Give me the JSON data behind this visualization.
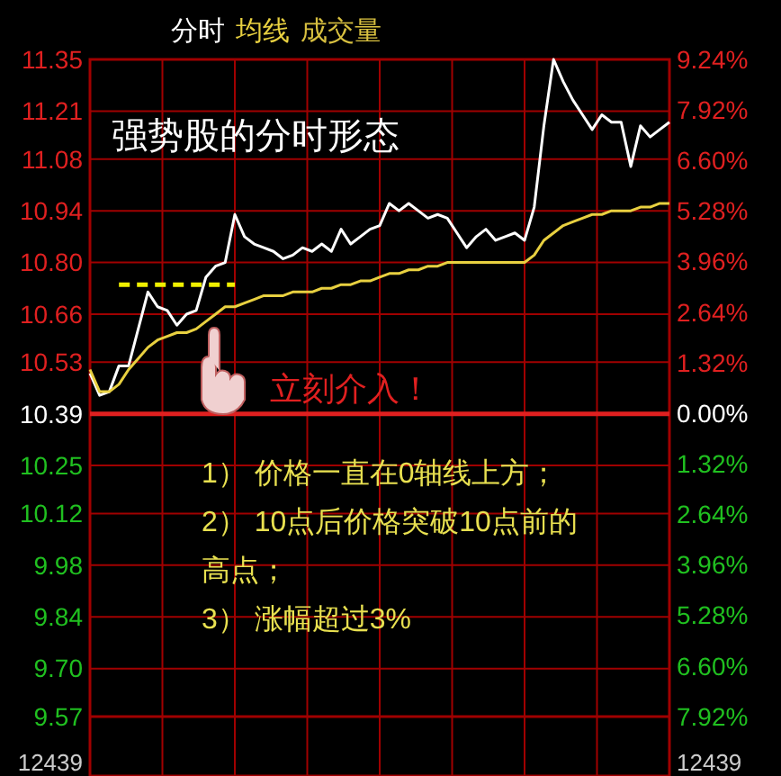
{
  "chart_data": {
    "type": "line",
    "grid": true,
    "categories": [
      null,
      null,
      null,
      null,
      null,
      null,
      null,
      null,
      null,
      null,
      null,
      null,
      null,
      null,
      null,
      null,
      null,
      null,
      null,
      null,
      null,
      null,
      null,
      null,
      null,
      null,
      null,
      null,
      null,
      null,
      null,
      null,
      null,
      null,
      null,
      null,
      null,
      null,
      null,
      null,
      null,
      null,
      null,
      null,
      null,
      null,
      null,
      null,
      null,
      null,
      null,
      null,
      null,
      null,
      null,
      null,
      null,
      null,
      null,
      null,
      null
    ],
    "ylim": [
      9.57,
      11.35
    ],
    "yticks": [
      11.35,
      11.21,
      11.08,
      10.94,
      {
        "value": 10.8,
        "label": "10.80"
      },
      10.66,
      10.53,
      10.39,
      10.25,
      10.12,
      9.98,
      9.84,
      {
        "value": 9.7,
        "label": "9.70"
      },
      9.57
    ],
    "y2lim": [
      -7.92,
      9.24
    ],
    "y2ticks": [
      {
        "value": 9.24,
        "label": "9.24%"
      },
      {
        "value": 7.92,
        "label": "7.92%"
      },
      {
        "value": 6.6,
        "label": "6.60%"
      },
      {
        "value": 5.28,
        "label": "5.28%"
      },
      {
        "value": 3.96,
        "label": "3.96%"
      },
      {
        "value": 2.64,
        "label": "2.64%"
      },
      {
        "value": 1.32,
        "label": "1.32%"
      },
      {
        "value": 0,
        "label": "0.00%"
      },
      {
        "value": -1.32,
        "label": "1.32%"
      },
      {
        "value": -2.64,
        "label": "2.64%"
      },
      {
        "value": -3.96,
        "label": "3.96%"
      },
      {
        "value": -5.28,
        "label": "5.28%"
      },
      {
        "value": -6.6,
        "label": "6.60%"
      },
      {
        "value": -7.92,
        "label": "7.92%"
      }
    ],
    "ref_lines": [
      {
        "axis": "y",
        "value": 10.39,
        "color": "#e02020"
      }
    ],
    "series": [
      {
        "name": "分时",
        "color": "#ffffff",
        "values": [
          10.5,
          10.44,
          10.45,
          10.52,
          10.52,
          10.62,
          10.72,
          10.68,
          10.67,
          10.63,
          10.66,
          10.67,
          10.76,
          10.79,
          10.8,
          10.93,
          10.87,
          10.85,
          10.84,
          10.83,
          10.81,
          10.82,
          10.84,
          10.83,
          10.85,
          10.83,
          10.89,
          10.85,
          10.87,
          10.89,
          10.9,
          10.96,
          10.94,
          10.96,
          10.94,
          10.92,
          10.93,
          10.92,
          10.88,
          10.84,
          10.87,
          10.89,
          10.86,
          10.87,
          10.88,
          10.86,
          10.95,
          11.17,
          11.35,
          11.29,
          11.24,
          11.2,
          11.16,
          11.2,
          11.18,
          11.18,
          11.06,
          11.17,
          11.14,
          11.16,
          11.18
        ]
      },
      {
        "name": "均线",
        "color": "#e8d040",
        "values": [
          10.51,
          10.45,
          10.45,
          10.47,
          10.51,
          10.54,
          10.57,
          10.59,
          10.6,
          10.61,
          10.61,
          10.62,
          10.64,
          10.66,
          10.68,
          10.68,
          10.69,
          10.7,
          10.71,
          10.71,
          10.71,
          10.72,
          10.72,
          10.72,
          10.73,
          10.73,
          10.74,
          10.74,
          10.75,
          10.75,
          10.76,
          10.77,
          10.77,
          10.78,
          10.78,
          10.79,
          10.79,
          10.8,
          10.8,
          10.8,
          10.8,
          10.8,
          10.8,
          10.8,
          10.8,
          10.8,
          10.82,
          10.86,
          10.88,
          10.9,
          10.91,
          10.92,
          10.93,
          10.93,
          10.94,
          10.94,
          10.94,
          10.95,
          10.95,
          10.96,
          10.96
        ]
      },
      {
        "color": "#f0f000",
        "line_style": "dashed",
        "values": [
          null,
          null,
          null,
          10.74,
          10.74,
          10.74,
          10.74,
          10.74,
          10.74,
          10.74,
          10.74,
          10.74,
          10.74,
          10.74,
          10.74,
          10.74,
          null,
          null,
          null,
          null,
          null,
          null,
          null,
          null,
          null,
          null,
          null,
          null,
          null,
          null,
          null,
          null,
          null,
          null,
          null,
          null,
          null,
          null,
          null,
          null,
          null,
          null,
          null,
          null,
          null,
          null,
          null,
          null,
          null,
          null,
          null,
          null,
          null,
          null,
          null,
          null,
          null,
          null,
          null,
          null,
          null
        ]
      }
    ],
    "annotations": [
      "强势股的分时形态",
      "立刻介入！",
      "1） 价格一直在0轴线上方；",
      "2） 10点后价格突破10点前的高点；",
      "3） 涨幅超过3%",
      "成交量",
      "12439",
      "12439"
    ]
  }
}
